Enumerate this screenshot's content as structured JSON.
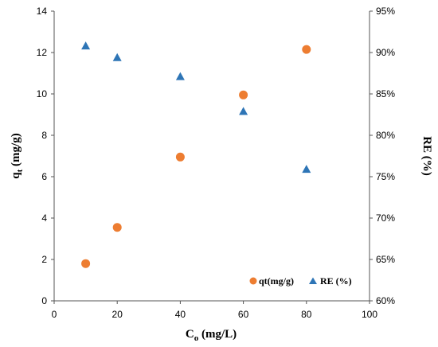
{
  "chart_data": {
    "type": "scatter",
    "title": "",
    "xlabel": {
      "main": "C",
      "sub": "o",
      "rest": " (mg/L)"
    },
    "ylabel_left": {
      "main": "q",
      "sub": "t",
      "rest": " (mg/g)"
    },
    "ylabel_right": "RE (%)",
    "xlim": [
      0,
      100
    ],
    "ylim_left": [
      0,
      14
    ],
    "ylim_right": [
      60,
      95
    ],
    "x_ticks": [
      "0",
      "20",
      "40",
      "60",
      "80",
      "100"
    ],
    "y_left_ticks": [
      "0",
      "2",
      "4",
      "6",
      "8",
      "10",
      "12",
      "14"
    ],
    "y_right_ticks": [
      "60%",
      "65%",
      "70%",
      "75%",
      "80%",
      "85%",
      "90%",
      "95%"
    ],
    "grid": false,
    "legend_position": "bottom-right",
    "series": [
      {
        "name": "qt(mg/g)",
        "axis": "left",
        "marker": "circle",
        "color": "#ED7D31",
        "x": [
          10,
          20,
          40,
          60,
          80
        ],
        "y": [
          1.8,
          3.55,
          6.95,
          9.95,
          12.15
        ]
      },
      {
        "name": "RE (%)",
        "axis": "right",
        "marker": "triangle",
        "color": "#2E75B6",
        "x": [
          10,
          20,
          40,
          60,
          80
        ],
        "y": [
          90.8,
          89.4,
          87.1,
          82.9,
          75.9
        ]
      }
    ]
  }
}
